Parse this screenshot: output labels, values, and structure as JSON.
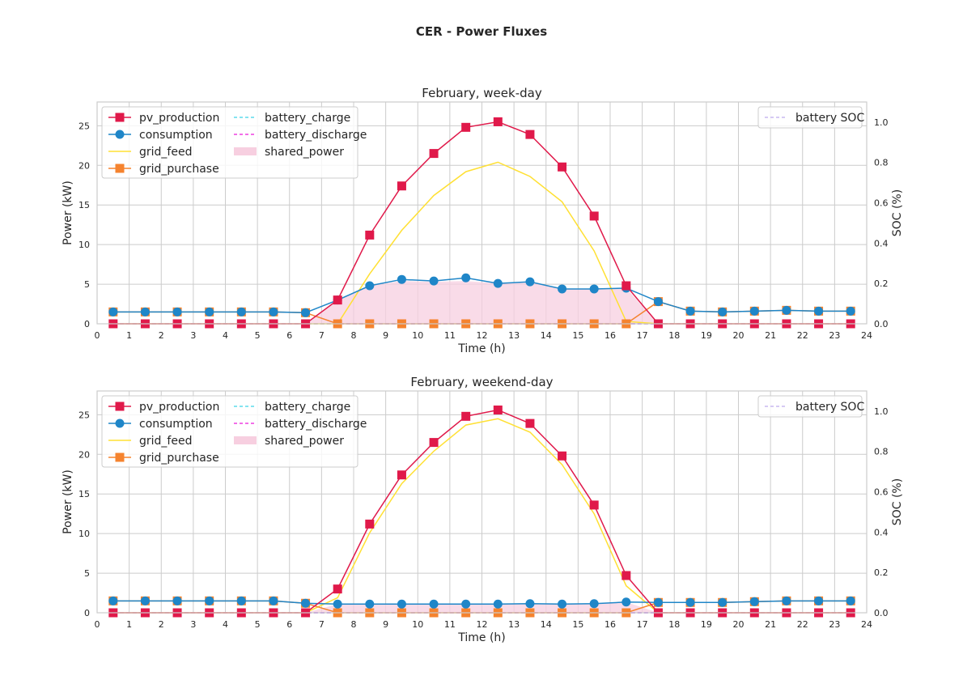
{
  "figure": {
    "title": "CER - Power Fluxes"
  },
  "colors": {
    "pv_production": "#e0194a",
    "consumption": "#1f86c8",
    "grid_feed": "#ffe033",
    "grid_purchase": "#f5832e",
    "battery_charge": "#5cdcec",
    "battery_discharge": "#ee3fe0",
    "shared_power": "#f7cfe0",
    "battery_soc": "#c8b8f0",
    "grid": "#cccccc",
    "axes_edge": "#cccccc"
  },
  "chart_data": [
    {
      "type": "line",
      "title": "February, week-day",
      "xlabel": "Time (h)",
      "ylabel": "Power (kW)",
      "y2label": "SOC (%)",
      "xlim": [
        0,
        24
      ],
      "ylim": [
        0,
        28
      ],
      "y2lim": [
        0,
        1.1
      ],
      "xticks": [
        "0",
        "1",
        "2",
        "3",
        "4",
        "5",
        "6",
        "7",
        "8",
        "9",
        "10",
        "11",
        "12",
        "13",
        "14",
        "15",
        "16",
        "17",
        "18",
        "19",
        "20",
        "21",
        "22",
        "23",
        "24"
      ],
      "yticks": [
        "0",
        "5",
        "10",
        "15",
        "20",
        "25"
      ],
      "y2ticks": [
        "0.0",
        "0.2",
        "0.4",
        "0.6",
        "0.8",
        "1.0"
      ],
      "grid": true,
      "legend_left": {
        "position": "top-left",
        "entries": [
          "pv_production",
          "consumption",
          "grid_feed",
          "grid_purchase",
          "battery_charge",
          "battery_discharge",
          "shared_power"
        ]
      },
      "legend_right": {
        "position": "top-right",
        "entries": [
          "battery SOC"
        ]
      },
      "x": [
        0.5,
        1.5,
        2.5,
        3.5,
        4.5,
        5.5,
        6.5,
        7.5,
        8.5,
        9.5,
        10.5,
        11.5,
        12.5,
        13.5,
        14.5,
        15.5,
        16.5,
        17.5,
        18.5,
        19.5,
        20.5,
        21.5,
        22.5,
        23.5
      ],
      "series": [
        {
          "name": "pv_production",
          "values": [
            0,
            0,
            0,
            0,
            0,
            0,
            0,
            3.0,
            11.2,
            17.4,
            21.5,
            24.8,
            25.5,
            23.9,
            19.8,
            13.6,
            4.8,
            0,
            0,
            0,
            0,
            0,
            0,
            0
          ]
        },
        {
          "name": "consumption",
          "values": [
            1.5,
            1.5,
            1.5,
            1.5,
            1.5,
            1.5,
            1.4,
            3.0,
            4.8,
            5.6,
            5.4,
            5.8,
            5.1,
            5.3,
            4.4,
            4.4,
            4.5,
            2.8,
            1.6,
            1.5,
            1.6,
            1.7,
            1.6,
            1.6
          ]
        },
        {
          "name": "grid_feed",
          "values": [
            0,
            0,
            0,
            0,
            0,
            0,
            0,
            0,
            6.3,
            11.8,
            16.2,
            19.2,
            20.4,
            18.6,
            15.4,
            9.2,
            0.3,
            0,
            0,
            0,
            0,
            0,
            0,
            0
          ]
        },
        {
          "name": "grid_purchase",
          "values": [
            1.5,
            1.5,
            1.5,
            1.5,
            1.5,
            1.5,
            1.4,
            0,
            0,
            0,
            0,
            0,
            0,
            0,
            0,
            0,
            0,
            2.8,
            1.6,
            1.5,
            1.6,
            1.7,
            1.6,
            1.6
          ]
        },
        {
          "name": "battery_charge",
          "values": [
            0,
            0,
            0,
            0,
            0,
            0,
            0,
            0,
            0,
            0,
            0,
            0,
            0,
            0,
            0,
            0,
            0,
            0,
            0,
            0,
            0,
            0,
            0,
            0
          ]
        },
        {
          "name": "battery_discharge",
          "values": [
            0,
            0,
            0,
            0,
            0,
            0,
            0,
            0,
            0,
            0,
            0,
            0,
            0,
            0,
            0,
            0,
            0,
            0,
            0,
            0,
            0,
            0,
            0,
            0
          ]
        },
        {
          "name": "shared_power",
          "values": [
            0,
            0,
            0,
            0,
            0,
            0,
            0,
            3.0,
            4.8,
            5.4,
            5.3,
            5.4,
            5.1,
            5.2,
            4.4,
            4.4,
            4.5,
            0,
            0,
            0,
            0,
            0,
            0,
            0
          ]
        },
        {
          "name": "battery SOC",
          "values": [
            0,
            0,
            0,
            0,
            0,
            0,
            0,
            0,
            0,
            0,
            0,
            0,
            0,
            0,
            0,
            0,
            0,
            0,
            0,
            0,
            0,
            0,
            0,
            0
          ]
        }
      ]
    },
    {
      "type": "line",
      "title": "February, weekend-day",
      "xlabel": "Time (h)",
      "ylabel": "Power (kW)",
      "y2label": "SOC (%)",
      "xlim": [
        0,
        24
      ],
      "ylim": [
        0,
        28
      ],
      "y2lim": [
        0,
        1.1
      ],
      "xticks": [
        "0",
        "1",
        "2",
        "3",
        "4",
        "5",
        "6",
        "7",
        "8",
        "9",
        "10",
        "11",
        "12",
        "13",
        "14",
        "15",
        "16",
        "17",
        "18",
        "19",
        "20",
        "21",
        "22",
        "23",
        "24"
      ],
      "yticks": [
        "0",
        "5",
        "10",
        "15",
        "20",
        "25"
      ],
      "y2ticks": [
        "0.0",
        "0.2",
        "0.4",
        "0.6",
        "0.8",
        "1.0"
      ],
      "grid": true,
      "legend_left": {
        "position": "top-left",
        "entries": [
          "pv_production",
          "consumption",
          "grid_feed",
          "grid_purchase",
          "battery_charge",
          "battery_discharge",
          "shared_power"
        ]
      },
      "legend_right": {
        "position": "top-right",
        "entries": [
          "battery SOC"
        ]
      },
      "x": [
        0.5,
        1.5,
        2.5,
        3.5,
        4.5,
        5.5,
        6.5,
        7.5,
        8.5,
        9.5,
        10.5,
        11.5,
        12.5,
        13.5,
        14.5,
        15.5,
        16.5,
        17.5,
        18.5,
        19.5,
        20.5,
        21.5,
        22.5,
        23.5
      ],
      "series": [
        {
          "name": "pv_production",
          "values": [
            0,
            0,
            0,
            0,
            0,
            0,
            0,
            3.0,
            11.2,
            17.4,
            21.5,
            24.8,
            25.6,
            23.9,
            19.8,
            13.6,
            4.7,
            0,
            0,
            0,
            0,
            0,
            0,
            0
          ]
        },
        {
          "name": "consumption",
          "values": [
            1.5,
            1.5,
            1.5,
            1.5,
            1.5,
            1.5,
            1.2,
            1.1,
            1.1,
            1.1,
            1.1,
            1.1,
            1.1,
            1.15,
            1.1,
            1.15,
            1.35,
            1.3,
            1.3,
            1.3,
            1.4,
            1.5,
            1.5,
            1.5
          ]
        },
        {
          "name": "grid_feed",
          "values": [
            0,
            0,
            0,
            0,
            0,
            0,
            0,
            1.9,
            10.1,
            16.3,
            20.4,
            23.7,
            24.5,
            22.8,
            18.7,
            12.5,
            3.4,
            0,
            0,
            0,
            0,
            0,
            0,
            0
          ]
        },
        {
          "name": "grid_purchase",
          "values": [
            1.5,
            1.5,
            1.5,
            1.5,
            1.5,
            1.5,
            1.2,
            0,
            0,
            0,
            0,
            0,
            0,
            0,
            0,
            0,
            0,
            1.3,
            1.3,
            1.3,
            1.4,
            1.5,
            1.5,
            1.5
          ]
        },
        {
          "name": "battery_charge",
          "values": [
            0,
            0,
            0,
            0,
            0,
            0,
            0,
            0,
            0,
            0,
            0,
            0,
            0,
            0,
            0,
            0,
            0,
            0,
            0,
            0,
            0,
            0,
            0,
            0
          ]
        },
        {
          "name": "battery_discharge",
          "values": [
            0,
            0,
            0,
            0,
            0,
            0,
            0,
            0,
            0,
            0,
            0,
            0,
            0,
            0,
            0,
            0,
            0,
            0,
            0,
            0,
            0,
            0,
            0,
            0
          ]
        },
        {
          "name": "shared_power",
          "values": [
            0,
            0,
            0,
            0,
            0,
            0,
            0,
            1.1,
            1.1,
            1.1,
            1.1,
            1.1,
            1.1,
            1.15,
            1.1,
            1.15,
            1.35,
            0,
            0,
            0,
            0,
            0,
            0,
            0
          ]
        },
        {
          "name": "battery SOC",
          "values": [
            0,
            0,
            0,
            0,
            0,
            0,
            0,
            0,
            0,
            0,
            0,
            0,
            0,
            0,
            0,
            0,
            0,
            0,
            0,
            0,
            0,
            0,
            0,
            0
          ]
        }
      ]
    }
  ]
}
